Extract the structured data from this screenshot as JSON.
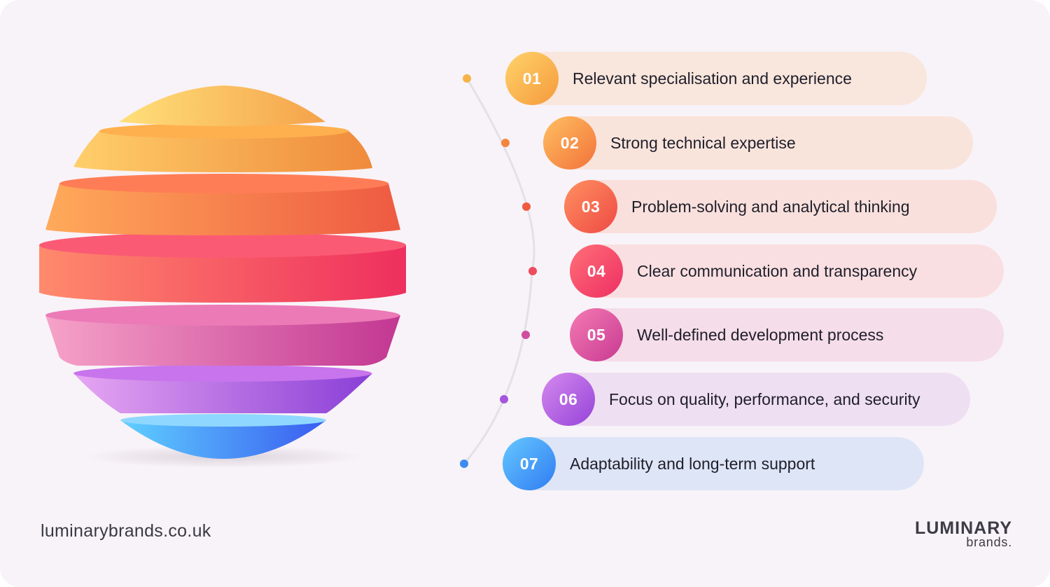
{
  "items": [
    {
      "num": "01",
      "label": "Relevant specialisation and experience",
      "color_a": "#ffd36a",
      "color_b": "#f59a3c",
      "pill": "#f9e6dc"
    },
    {
      "num": "02",
      "label": "Strong technical expertise",
      "color_a": "#ffc061",
      "color_b": "#f2723a",
      "pill": "#f9e4dc"
    },
    {
      "num": "03",
      "label": "Problem-solving and analytical thinking",
      "color_a": "#ff9060",
      "color_b": "#ee4a45",
      "pill": "#f9e0dc"
    },
    {
      "num": "04",
      "label": "Clear communication and transparency",
      "color_a": "#ff7078",
      "color_b": "#ee2e63",
      "pill": "#f9dfe1"
    },
    {
      "num": "05",
      "label": "Well-defined development process",
      "color_a": "#f47bb4",
      "color_b": "#c83a91",
      "pill": "#f5dde9"
    },
    {
      "num": "06",
      "label": "Focus on quality, performance, and security",
      "color_a": "#d58aee",
      "color_b": "#9543d8",
      "pill": "#efdff2"
    },
    {
      "num": "07",
      "label": "Adaptability and long-term support",
      "color_a": "#67c8ff",
      "color_b": "#2f7cf2",
      "pill": "#dee5f6"
    }
  ],
  "footer": {
    "website": "luminarybrands.co.uk",
    "logo_main": "LUMINARY",
    "logo_sub": "brands."
  }
}
